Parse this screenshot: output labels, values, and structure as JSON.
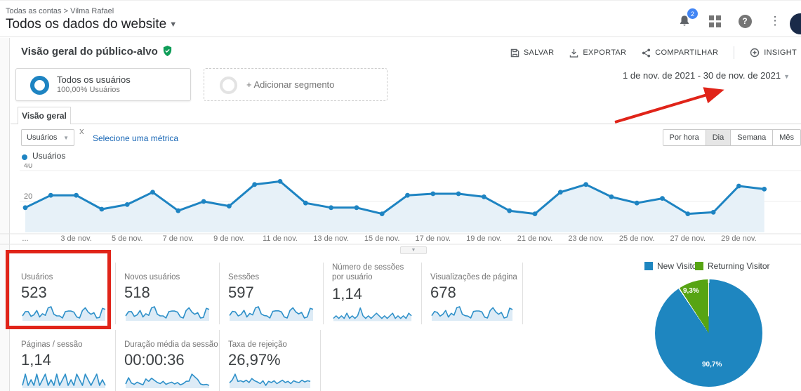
{
  "header": {
    "breadcrumb_root": "Todas as contas",
    "breadcrumb_sep": ">",
    "breadcrumb_account": "Vilma Rafael",
    "title": "Todos os dados do website",
    "notification_count": "2"
  },
  "section": {
    "title": "Visão geral do público-alvo",
    "save_label": "SALVAR",
    "export_label": "EXPORTAR",
    "share_label": "COMPARTILHAR",
    "insight_label": "INSIGHT"
  },
  "segments": {
    "primary_name": "Todos os usuários",
    "primary_detail": "100,00% Usuários",
    "add_label": "+ Adicionar segmento"
  },
  "date_range": "1 de nov. de 2021 - 30 de nov. de 2021",
  "tabs": {
    "overview": "Visão geral"
  },
  "metric_bar": {
    "selected_metric": "Usuários",
    "vs_mark": "X",
    "add_metric_label": "Selecione uma métrica",
    "granularity": [
      "Por hora",
      "Dia",
      "Semana",
      "Mês"
    ],
    "selected_granularity": "Dia"
  },
  "chart_legend": "Usuários",
  "chart_data": [
    {
      "type": "line",
      "title": "Usuários",
      "x_unit": "day of November 2021",
      "categories": [
        1,
        2,
        3,
        4,
        5,
        6,
        7,
        8,
        9,
        10,
        11,
        12,
        13,
        14,
        15,
        16,
        17,
        18,
        19,
        20,
        21,
        22,
        23,
        24,
        25,
        26,
        27,
        28,
        29,
        30
      ],
      "values": [
        16,
        24,
        24,
        15,
        18,
        26,
        14,
        20,
        17,
        31,
        33,
        19,
        16,
        16,
        12,
        24,
        25,
        25,
        23,
        14,
        12,
        26,
        31,
        23,
        19,
        22,
        12,
        13,
        30,
        28
      ],
      "yticks": [
        20,
        40
      ],
      "ylim": [
        0,
        44
      ],
      "x_tick_labels": [
        "...",
        "3 de nov.",
        "5 de nov.",
        "7 de nov.",
        "9 de nov.",
        "11 de nov.",
        "13 de nov.",
        "15 de nov.",
        "17 de nov.",
        "19 de nov.",
        "21 de nov.",
        "23 de nov.",
        "25 de nov.",
        "27 de nov.",
        "29 de nov."
      ],
      "x_tick_positions": [
        0,
        2,
        4,
        6,
        8,
        10,
        12,
        14,
        16,
        18,
        20,
        22,
        24,
        26,
        28
      ],
      "line_color": "#1e84c2",
      "fill_color": "#e7f1f8",
      "grid": "horizontal"
    },
    {
      "type": "pie",
      "series": [
        {
          "name": "New Visitor",
          "value": 90.7,
          "label": "90,7%",
          "color": "#1e86c0"
        },
        {
          "name": "Returning Visitor",
          "value": 9.3,
          "label": "9,3%",
          "color": "#57a413"
        }
      ],
      "legend_position": "top"
    }
  ],
  "cards": [
    {
      "label": "Usuários",
      "value": "523",
      "spark": [
        16,
        24,
        24,
        15,
        18,
        26,
        14,
        20,
        17,
        31,
        33,
        19,
        16,
        16,
        12,
        24,
        25,
        25,
        23,
        14,
        12,
        26,
        31,
        23,
        19,
        22,
        12,
        13,
        30,
        28
      ]
    },
    {
      "label": "Novos usuários",
      "value": "518",
      "spark": [
        15,
        23,
        23,
        14,
        17,
        25,
        13,
        19,
        16,
        30,
        32,
        18,
        15,
        15,
        11,
        23,
        24,
        24,
        22,
        13,
        11,
        25,
        30,
        22,
        18,
        21,
        11,
        12,
        29,
        27
      ]
    },
    {
      "label": "Sessões",
      "value": "597",
      "spark": [
        18,
        26,
        25,
        17,
        20,
        28,
        15,
        22,
        19,
        33,
        35,
        21,
        18,
        17,
        13,
        26,
        27,
        27,
        25,
        15,
        13,
        28,
        33,
        25,
        21,
        24,
        13,
        15,
        32,
        30
      ]
    },
    {
      "label": "Número de sessões por usuário",
      "value": "1,14",
      "spark": [
        10,
        11,
        10,
        11,
        10,
        12,
        10,
        11,
        10,
        11,
        14,
        11,
        10,
        11,
        10,
        11,
        12,
        11,
        10,
        11,
        10,
        11,
        12,
        10,
        11,
        10,
        11,
        10,
        12,
        11
      ]
    },
    {
      "label": "Visualizações de página",
      "value": "678",
      "spark": [
        20,
        29,
        27,
        19,
        23,
        31,
        17,
        25,
        21,
        37,
        39,
        23,
        20,
        19,
        15,
        29,
        30,
        30,
        28,
        17,
        15,
        31,
        37,
        28,
        23,
        27,
        15,
        17,
        36,
        33
      ]
    },
    {
      "label": "Páginas / sessão",
      "value": "1,14",
      "spark": [
        11,
        13,
        11,
        12,
        11,
        13,
        11,
        12,
        13,
        11,
        12,
        11,
        13,
        11,
        12,
        13,
        11,
        12,
        11,
        13,
        12,
        11,
        13,
        12,
        11,
        12,
        13,
        11,
        12,
        11
      ]
    },
    {
      "label": "Duração média da sessão",
      "value": "00:00:36",
      "spark": [
        20,
        55,
        25,
        18,
        30,
        22,
        15,
        48,
        35,
        52,
        40,
        28,
        22,
        35,
        18,
        25,
        30,
        20,
        28,
        15,
        22,
        35,
        36,
        75,
        60,
        45,
        20,
        15,
        18,
        12
      ]
    },
    {
      "label": "Taxa de rejeição",
      "value": "26,97%",
      "spark": [
        25,
        35,
        55,
        30,
        32,
        28,
        34,
        26,
        40,
        32,
        28,
        22,
        32,
        16,
        30,
        26,
        32,
        22,
        28,
        34,
        26,
        30,
        22,
        32,
        28,
        26,
        34,
        28,
        32,
        30
      ]
    }
  ],
  "pie_labels": {
    "blue": "90,7%",
    "green": "9,3%"
  },
  "pie_legend": [
    "New Visitor",
    "Returning Visitor"
  ],
  "annotation_color": "#e02419"
}
